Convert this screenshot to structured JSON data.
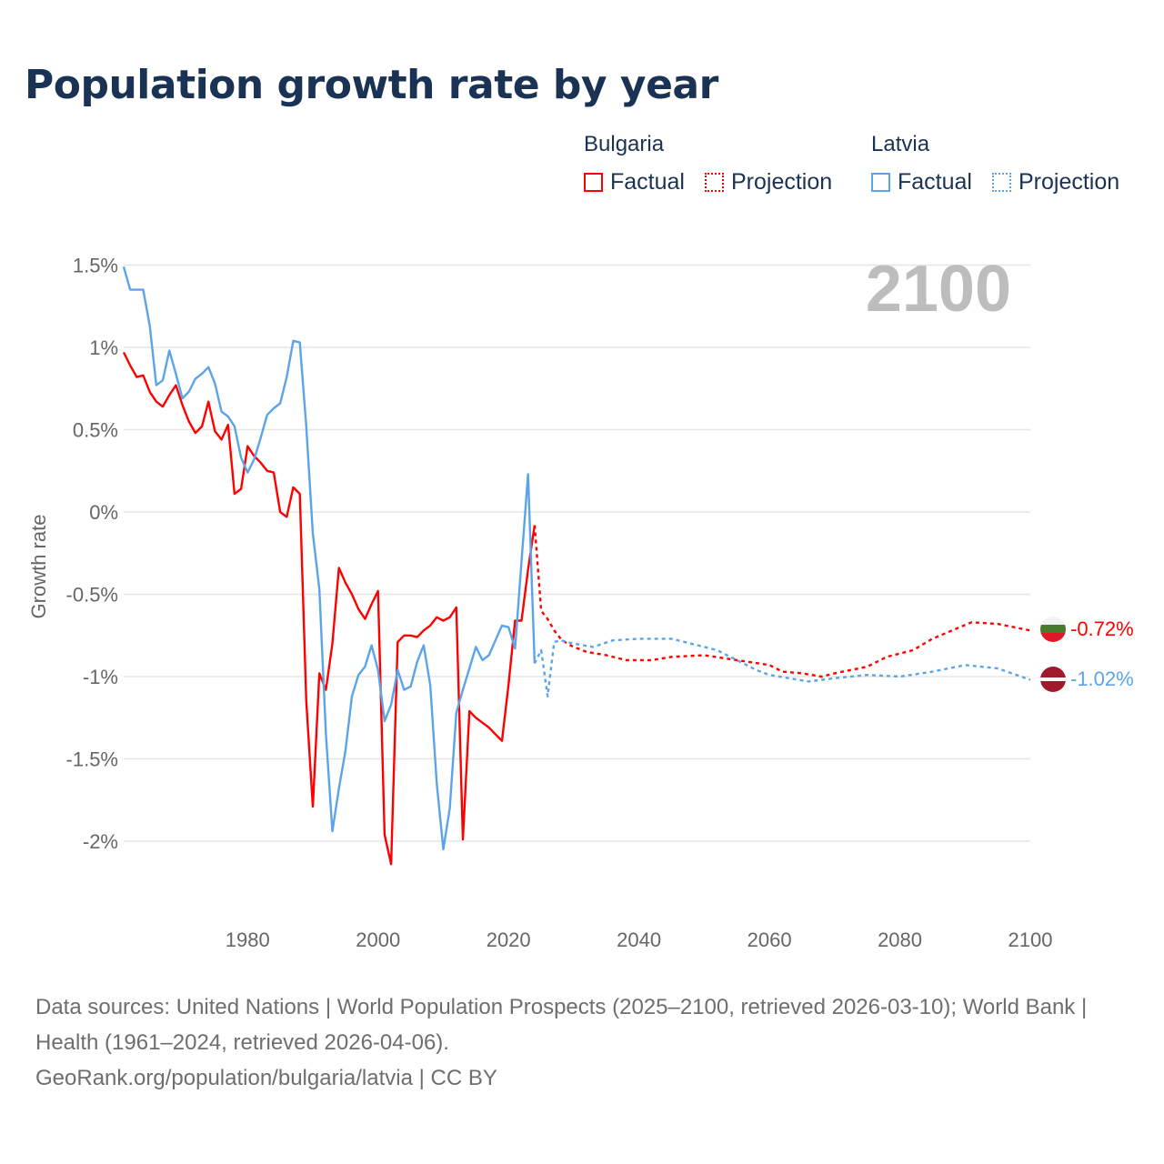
{
  "title": "Population growth rate by year",
  "legend": {
    "groups": [
      {
        "country": "Bulgaria",
        "factual": "Factual",
        "projection": "Projection",
        "color": "#ff0000"
      },
      {
        "country": "Latvia",
        "factual": "Factual",
        "projection": "Projection",
        "color": "#5ba4ea"
      }
    ]
  },
  "year_label": "2100",
  "source_lines": [
    "Data sources: United Nations | World Population Prospects (2025–2100, retrieved 2026-03-10); World Bank | Health (1961–2024, retrieved 2026-04-06).",
    "GeoRank.org/population/bulgaria/latvia | CC BY"
  ],
  "chart_data": {
    "type": "line",
    "title": "Population growth rate by year",
    "xlabel": "",
    "ylabel": "Growth rate",
    "xlim": [
      1961,
      2100
    ],
    "ylim": [
      -2.4,
      1.6
    ],
    "x_ticks": [
      1980,
      2000,
      2020,
      2040,
      2060,
      2080,
      2100
    ],
    "x_tick_labels": [
      "1980",
      "2000",
      "2020",
      "2040",
      "2060",
      "2080",
      "2100"
    ],
    "y_ticks": [
      1.5,
      1,
      0.5,
      0,
      -0.5,
      -1,
      -1.5,
      -2
    ],
    "y_tick_labels": [
      "1.5%",
      "1%",
      "0.5%",
      "0%",
      "-0.5%",
      "-1%",
      "-1.5%",
      "-2%"
    ],
    "grid": true,
    "legend_position": "top-right",
    "series": [
      {
        "name": "Bulgaria Factual",
        "color": "#ff0000",
        "dash": false,
        "x": [
          1961,
          1962,
          1963,
          1964,
          1965,
          1966,
          1967,
          1968,
          1969,
          1970,
          1971,
          1972,
          1973,
          1974,
          1975,
          1976,
          1977,
          1978,
          1979,
          1980,
          1981,
          1982,
          1983,
          1984,
          1985,
          1986,
          1987,
          1988,
          1989,
          1990,
          1991,
          1992,
          1993,
          1994,
          1995,
          1996,
          1997,
          1998,
          1999,
          2000,
          2001,
          2002,
          2003,
          2004,
          2005,
          2006,
          2007,
          2008,
          2009,
          2010,
          2011,
          2012,
          2013,
          2014,
          2015,
          2016,
          2017,
          2018,
          2019,
          2020,
          2021,
          2022,
          2023,
          2024
        ],
        "y": [
          0.97,
          0.89,
          0.82,
          0.83,
          0.73,
          0.67,
          0.64,
          0.71,
          0.77,
          0.65,
          0.55,
          0.48,
          0.52,
          0.67,
          0.49,
          0.44,
          0.53,
          0.11,
          0.14,
          0.4,
          0.34,
          0.3,
          0.25,
          0.24,
          0.0,
          -0.03,
          0.15,
          0.11,
          -1.15,
          -1.79,
          -0.98,
          -1.08,
          -0.8,
          -0.34,
          -0.43,
          -0.5,
          -0.59,
          -0.65,
          -0.56,
          -0.48,
          -1.96,
          -2.14,
          -0.79,
          -0.75,
          -0.75,
          -0.76,
          -0.72,
          -0.69,
          -0.64,
          -0.66,
          -0.64,
          -0.58,
          -1.99,
          -1.21,
          -1.25,
          -1.28,
          -1.31,
          -1.35,
          -1.39,
          -1.05,
          -0.66,
          -0.66,
          -0.35,
          -0.08
        ]
      },
      {
        "name": "Bulgaria Projection",
        "color": "#ff0000",
        "dash": true,
        "x": [
          2024,
          2025,
          2026,
          2027,
          2028,
          2029,
          2030,
          2032,
          2035,
          2038,
          2040,
          2042,
          2045,
          2050,
          2055,
          2060,
          2062,
          2065,
          2068,
          2070,
          2075,
          2078,
          2082,
          2085,
          2088,
          2091,
          2095,
          2100
        ],
        "y": [
          -0.08,
          -0.6,
          -0.65,
          -0.72,
          -0.77,
          -0.8,
          -0.82,
          -0.85,
          -0.87,
          -0.9,
          -0.9,
          -0.9,
          -0.88,
          -0.87,
          -0.9,
          -0.93,
          -0.97,
          -0.98,
          -1.0,
          -0.98,
          -0.94,
          -0.88,
          -0.84,
          -0.77,
          -0.72,
          -0.67,
          -0.68,
          -0.72
        ]
      },
      {
        "name": "Latvia Factual",
        "color": "#5ba4ea",
        "dash": false,
        "x": [
          1961,
          1962,
          1963,
          1964,
          1965,
          1966,
          1967,
          1968,
          1969,
          1970,
          1971,
          1972,
          1973,
          1974,
          1975,
          1976,
          1977,
          1978,
          1979,
          1980,
          1981,
          1982,
          1983,
          1984,
          1985,
          1986,
          1987,
          1988,
          1989,
          1990,
          1991,
          1992,
          1993,
          1994,
          1995,
          1996,
          1997,
          1998,
          1999,
          2000,
          2001,
          2002,
          2003,
          2004,
          2005,
          2006,
          2007,
          2008,
          2009,
          2010,
          2011,
          2012,
          2013,
          2014,
          2015,
          2016,
          2017,
          2018,
          2019,
          2020,
          2021,
          2022,
          2023,
          2024
        ],
        "y": [
          1.49,
          1.35,
          1.35,
          1.35,
          1.13,
          0.77,
          0.8,
          0.98,
          0.84,
          0.69,
          0.73,
          0.81,
          0.84,
          0.88,
          0.78,
          0.61,
          0.58,
          0.52,
          0.33,
          0.24,
          0.32,
          0.45,
          0.59,
          0.63,
          0.66,
          0.82,
          1.04,
          1.03,
          0.52,
          -0.13,
          -0.47,
          -1.35,
          -1.94,
          -1.68,
          -1.45,
          -1.12,
          -0.99,
          -0.94,
          -0.81,
          -0.96,
          -1.27,
          -1.17,
          -0.96,
          -1.08,
          -1.06,
          -0.91,
          -0.81,
          -1.05,
          -1.65,
          -2.05,
          -1.8,
          -1.22,
          -1.08,
          -0.95,
          -0.82,
          -0.9,
          -0.87,
          -0.78,
          -0.69,
          -0.7,
          -0.83,
          -0.3,
          0.23,
          -0.92
        ]
      },
      {
        "name": "Latvia Projection",
        "color": "#5ba4ea",
        "dash": true,
        "x": [
          2024,
          2025,
          2026,
          2027,
          2028,
          2030,
          2033,
          2036,
          2040,
          2045,
          2048,
          2052,
          2055,
          2058,
          2060,
          2063,
          2066,
          2070,
          2075,
          2080,
          2085,
          2090,
          2095,
          2100
        ],
        "y": [
          -0.92,
          -0.84,
          -1.12,
          -0.79,
          -0.78,
          -0.8,
          -0.82,
          -0.78,
          -0.77,
          -0.77,
          -0.8,
          -0.84,
          -0.9,
          -0.96,
          -0.99,
          -1.01,
          -1.03,
          -1.01,
          -0.99,
          -1.0,
          -0.97,
          -0.93,
          -0.95,
          -1.02
        ]
      }
    ],
    "end_labels": [
      {
        "country": "Bulgaria",
        "value": -0.72,
        "text": "-0.72%",
        "color": "#ff0000"
      },
      {
        "country": "Latvia",
        "value": -1.02,
        "text": "-1.02%",
        "color": "#5ba4ea"
      }
    ]
  }
}
